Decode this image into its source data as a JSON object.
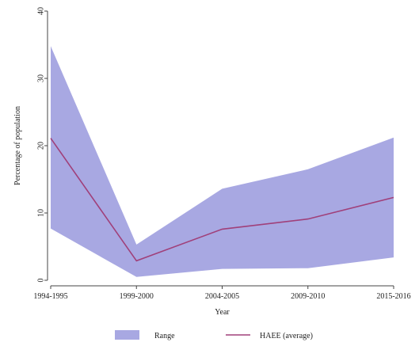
{
  "chart_data": {
    "type": "area",
    "title": "",
    "xlabel": "Year",
    "ylabel": "Percentage of population",
    "categories": [
      "1994-1995",
      "1999-2000",
      "2004-2005",
      "2009-2010",
      "2015-2016"
    ],
    "ylim": [
      0,
      40
    ],
    "yticks": [
      0,
      10,
      20,
      30,
      40
    ],
    "grid": false,
    "legend_position": "bottom",
    "series": [
      {
        "name": "Range",
        "kind": "band",
        "low": [
          7.7,
          0.5,
          1.7,
          1.8,
          3.4
        ],
        "high": [
          34.8,
          5.3,
          13.6,
          16.5,
          21.2
        ],
        "color": "#9999dd"
      },
      {
        "name": "HAEE (average)",
        "kind": "line",
        "values": [
          21.1,
          2.9,
          7.6,
          9.1,
          12.3
        ],
        "color": "#a0407a"
      }
    ]
  }
}
